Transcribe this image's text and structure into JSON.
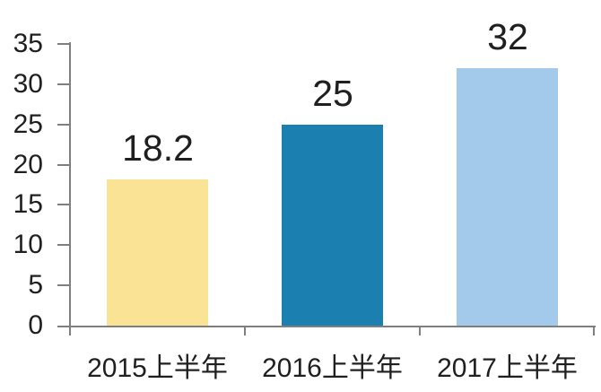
{
  "chart_data": {
    "type": "bar",
    "title": "",
    "xlabel": "",
    "ylabel": "",
    "categories": [
      "2015上半年",
      "2016上半年",
      "2017上半年"
    ],
    "values": [
      18.2,
      25,
      32
    ],
    "value_labels": [
      "18.2",
      "25",
      "32"
    ],
    "bar_colors": [
      "#FBE395",
      "#1B80B0",
      "#A4CAEB"
    ],
    "ylim": [
      0,
      35
    ],
    "y_ticks": [
      0,
      5,
      10,
      15,
      20,
      25,
      30,
      35
    ],
    "y_tick_labels": [
      "0",
      "5",
      "10",
      "15",
      "20",
      "25",
      "30",
      "35"
    ],
    "grid": "off",
    "legend": "none",
    "colors": {
      "axis": "#7F7F7F",
      "text": "#1F1F1F",
      "background": "#FFFFFF"
    }
  }
}
